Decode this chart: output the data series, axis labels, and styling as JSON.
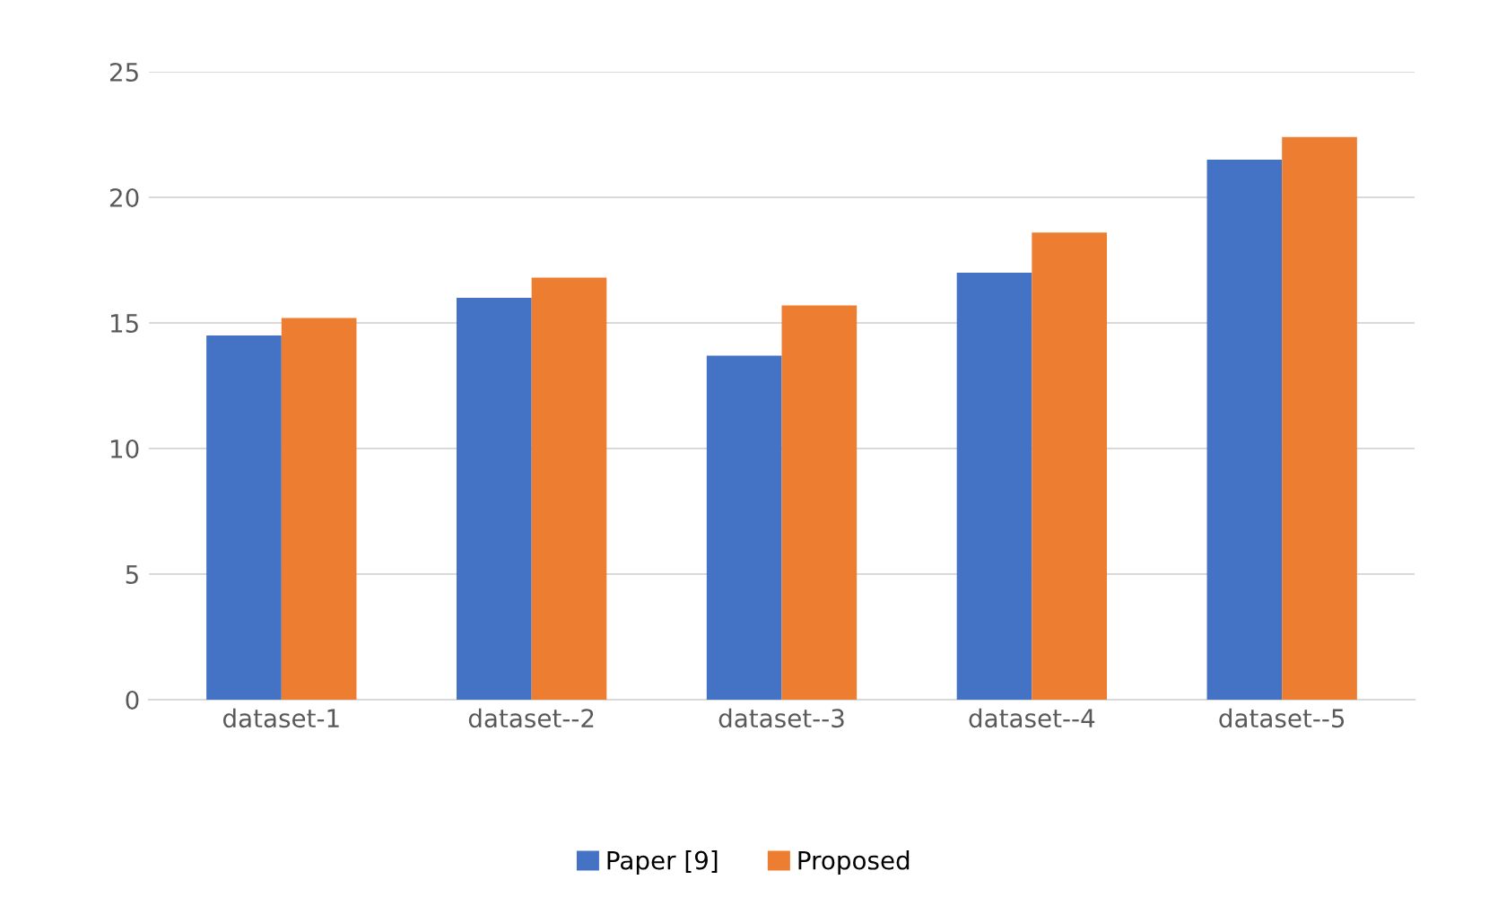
{
  "chart_data": {
    "type": "bar",
    "categories": [
      "dataset-1",
      "dataset--2",
      "dataset--3",
      "dataset--4",
      "dataset--5"
    ],
    "series": [
      {
        "name": "Paper [9]",
        "color": "#4472c4",
        "values": [
          14.5,
          16.0,
          13.7,
          17.0,
          21.5
        ]
      },
      {
        "name": "Proposed",
        "color": "#ed7d31",
        "values": [
          15.2,
          16.8,
          15.7,
          18.6,
          22.4
        ]
      }
    ],
    "ylim": [
      0,
      25
    ],
    "yticks": [
      0,
      5,
      10,
      15,
      20,
      25
    ],
    "grid": "y",
    "legend": "bottom"
  }
}
